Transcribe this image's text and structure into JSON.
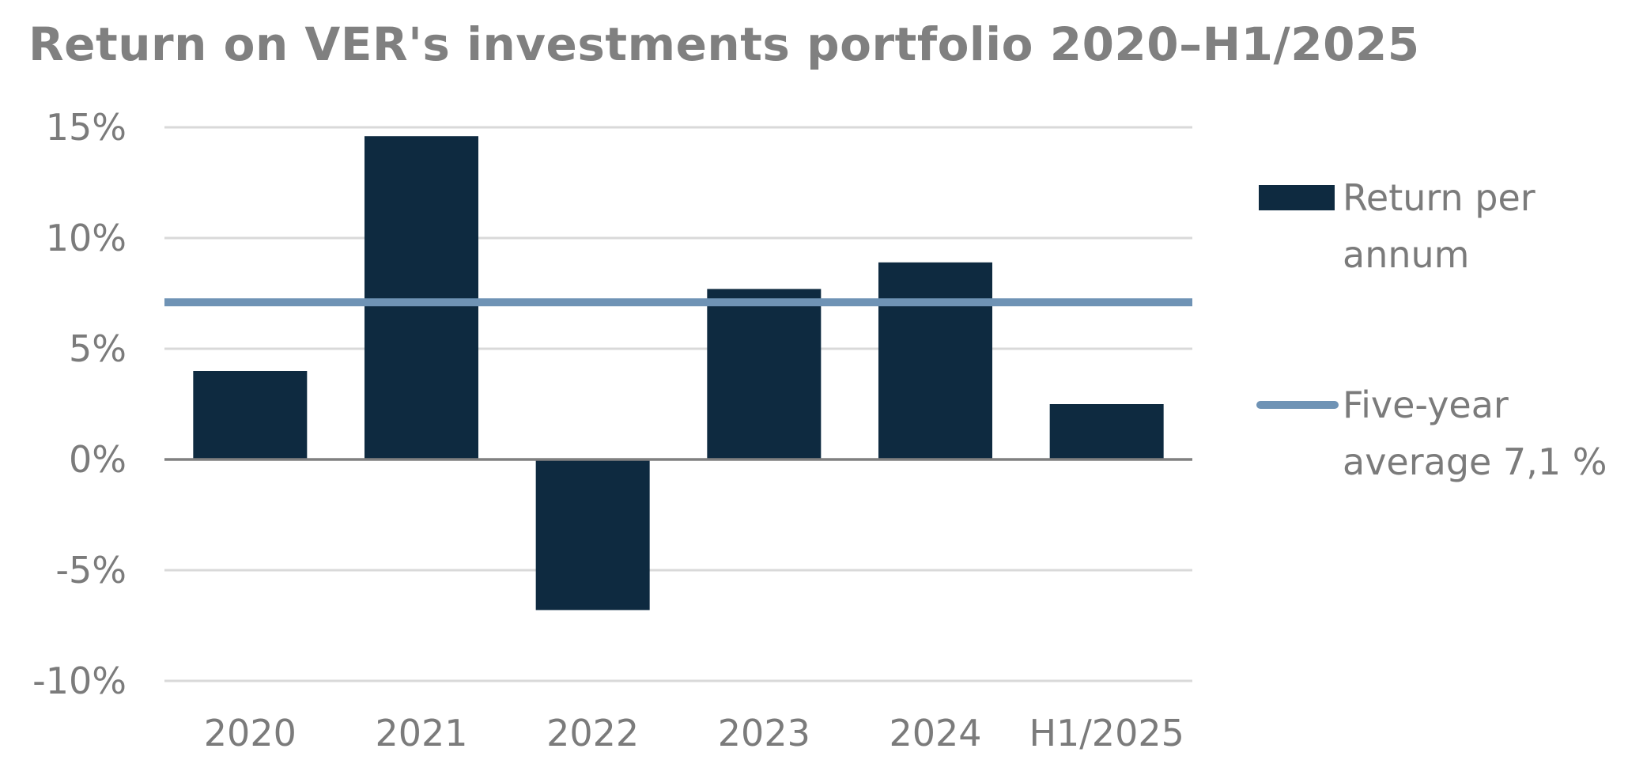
{
  "chart_data": {
    "type": "bar",
    "title": "Return on VER's investments portfolio 2020–H1/2025",
    "categories": [
      "2020",
      "2021",
      "2022",
      "2023",
      "2024",
      "H1/2025"
    ],
    "series": [
      {
        "name": "Return per annum",
        "type": "bar",
        "values": [
          4.0,
          14.6,
          -6.8,
          7.7,
          8.9,
          2.5
        ],
        "color": "#0e2a40"
      },
      {
        "name": "Five-year average 7,1 %",
        "type": "line",
        "value": 7.1,
        "color": "#6f93b5"
      }
    ],
    "y_ticks": [
      "15%",
      "10%",
      "5%",
      "0%",
      "-5%",
      "-10%"
    ],
    "ylim": [
      -10,
      15
    ],
    "y_unit": "%",
    "grid": true,
    "legend": {
      "placement": "right",
      "items": [
        {
          "lines": [
            "Return per",
            "annum"
          ],
          "marker": "bar"
        },
        {
          "lines": [
            "Five-year",
            "average 7,1 %"
          ],
          "marker": "line"
        }
      ]
    },
    "colors": {
      "bar": "#0e2a40",
      "average_line": "#6f93b5",
      "grid": "#d9d9d9",
      "zero_axis": "#808080",
      "text": "#7b7b7b"
    }
  }
}
